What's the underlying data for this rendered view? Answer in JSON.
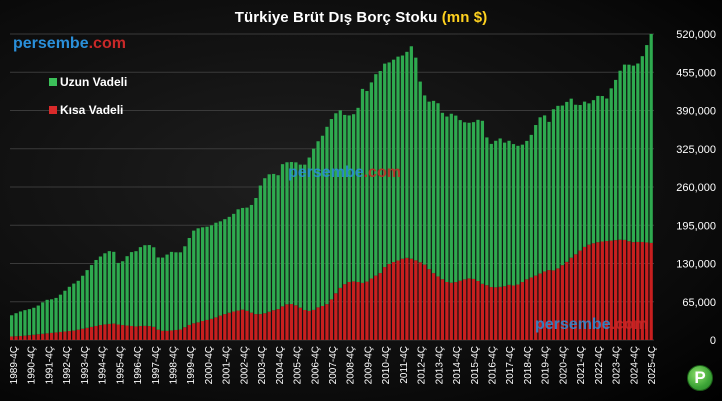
{
  "chart_data": {
    "type": "bar",
    "stacked": true,
    "title_main": "Türkiye Brüt Dış Borç Stoku ",
    "title_unit": "(mn $)",
    "ylim": [
      0,
      520000
    ],
    "yticks": [
      "0",
      "65,000",
      "130,000",
      "195,000",
      "260,000",
      "325,000",
      "390,000",
      "455,000",
      "520,000"
    ],
    "x_labels": [
      "1989-4Ç",
      "1990-4Ç",
      "1991-4Ç",
      "1992-4Ç",
      "1993-4Ç",
      "1994-4Ç",
      "1995-4Ç",
      "1996-4Ç",
      "1997-4Ç",
      "1998-4Ç",
      "1999-4Ç",
      "2000-4Ç",
      "2001-4Ç",
      "2002-4Ç",
      "2003-4Ç",
      "2004-4Ç",
      "2005-4Ç",
      "2006-4Ç",
      "2007-4Ç",
      "2008-4Ç",
      "2009-4Ç",
      "2010-4Ç",
      "2011-4Ç",
      "2012-4Ç",
      "2013-4Ç",
      "2014-4Ç",
      "2015-4Ç",
      "2016-4Ç",
      "2017-4Ç",
      "2018-4Ç",
      "2019-4Ç",
      "2020-4Ç",
      "2021-4Ç",
      "2022-4Ç",
      "2023-4Ç",
      "2024-4Ç",
      "2025-4Ç"
    ],
    "legend_position": "top-left",
    "colors": {
      "long_term": "#2eaa4f",
      "short_term": "#c81f1f"
    },
    "series": [
      {
        "name": "Uzun Vadeli",
        "key": "long_term",
        "anchors": [
          36000,
          40000,
          43000,
          44000,
          46000,
          50000,
          57000,
          57000,
          59000,
          66000,
          74000,
          80000,
          84000,
          95000,
          104000,
          113000,
          118000,
          124000,
          123000,
          101000,
          113000,
          125000,
          128000,
          136000,
          138000,
          137000,
          121000,
          126000,
          134000,
          132000,
          131000,
          142000,
          157000,
          160000,
          159000,
          158000,
          161000,
          160000,
          162000,
          164000,
          172000,
          173000,
          177000,
          193000,
          220000,
          233000,
          234000,
          226000,
          244000,
          240000,
          243000,
          243000,
          248000,
          270000,
          281000,
          290000,
          306000,
          307000,
          303000,
          285000,
          282000,
          287000,
          330000,
          322000,
          342000,
          343000,
          346000,
          341000,
          347000,
          345000,
          351000,
          367000,
          312000,
          287000,
          284000,
          300000,
          283000,
          281000,
          290000,
          275000,
          267000,
          264000,
          268000,
          283000,
          250000,
          241000,
          256000,
          244000,
          245000,
          238000,
          233000,
          235000,
          244000,
          264000,
          268000,
          251000,
          282000,
          271000,
          272000,
          270000,
          246000,
          249000,
          240000,
          244000,
          252000,
          239000,
          260000,
          277000,
          297000,
          300000,
          300000,
          305000,
          330000,
          355000
        ]
      },
      {
        "name": "Kısa Vadeli",
        "key": "short_term",
        "anchors": [
          6000,
          6500,
          7000,
          8000,
          9000,
          10000,
          11000,
          12000,
          13000,
          14000,
          15000,
          16000,
          18000,
          20000,
          22000,
          24000,
          26000,
          27000,
          28000,
          26000,
          25000,
          24000,
          23000,
          24000,
          24000,
          23000,
          17000,
          15000,
          16000,
          17000,
          18000,
          24000,
          28000,
          30000,
          33000,
          35000,
          38000,
          42000,
          45000,
          48000,
          50000,
          52000,
          48000,
          44000,
          44000,
          46000,
          50000,
          52000,
          58000,
          62000,
          60000,
          55000,
          50000,
          49000,
          55000,
          58000,
          62000,
          76000,
          88000,
          96000,
          100000,
          99000,
          97000,
          100000,
          108000,
          112000,
          125000,
          131000,
          134000,
          138000,
          140000,
          137000,
          133000,
          128000,
          118000,
          110000,
          104000,
          98000,
          97000,
          100000,
          103000,
          105000,
          103000,
          96000,
          93000,
          89000,
          90000,
          91000,
          94000,
          92000,
          97000,
          103000,
          107000,
          111000,
          116000,
          119000,
          118000,
          125000,
          132000,
          141000,
          148000,
          157000,
          162000,
          165000,
          167000,
          168000,
          169000,
          170000,
          171000,
          168000,
          166000,
          167000,
          166000,
          165000
        ]
      }
    ]
  },
  "watermarks": [
    {
      "part_a": "persembe",
      "part_b": ".com"
    },
    {
      "part_a": "persembe",
      "part_b": ".com"
    },
    {
      "part_a": "persembe",
      "part_b": ".com"
    }
  ],
  "logo_letter": "P"
}
